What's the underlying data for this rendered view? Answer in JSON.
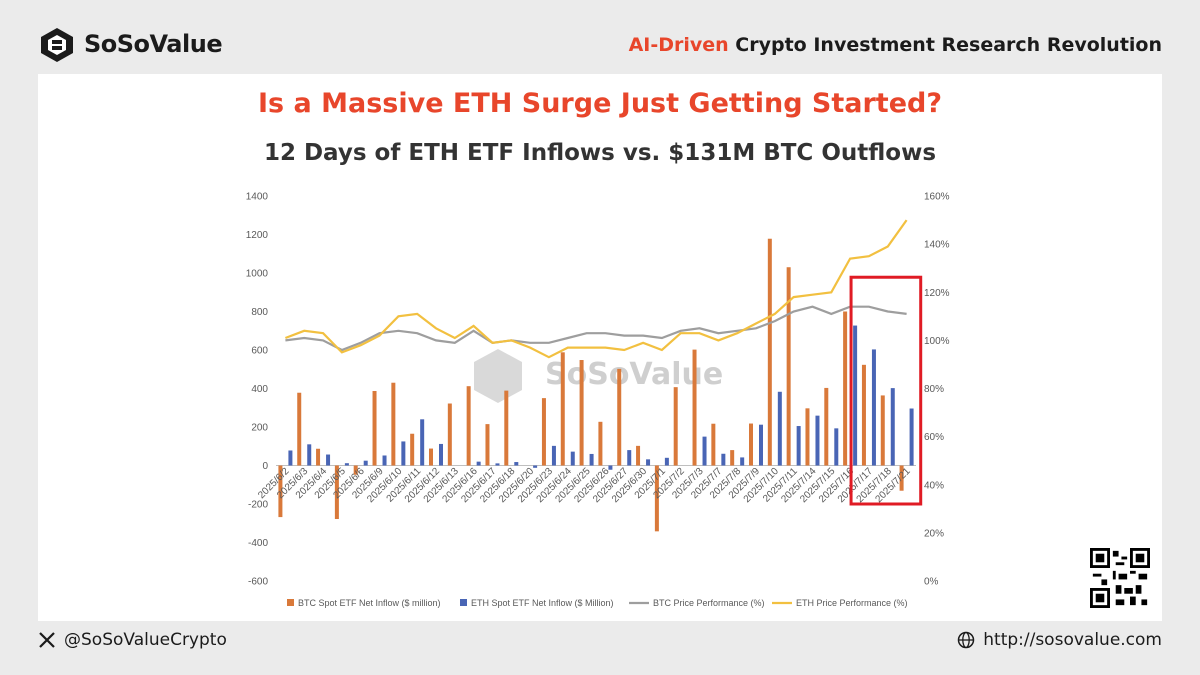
{
  "header": {
    "brand": "SoSoValue",
    "tagline_accent": "AI-Driven",
    "tagline_rest": " Crypto Investment Research Revolution"
  },
  "title": "Is a Massive ETH Surge Just Getting Started?",
  "subtitle": "12 Days of ETH ETF Inflows vs. $131M BTC Outflows",
  "watermark": "SoSoValue",
  "footer": {
    "handle": "@SoSoValueCrypto",
    "url": "http://sosovalue.com"
  },
  "colors": {
    "btc_bar": "#d9793a",
    "eth_bar": "#4965b5",
    "btc_line": "#9e9e9e",
    "eth_line": "#f2c040",
    "accent": "#e8462b",
    "highlight_box": "#e01b24"
  },
  "chart_data": {
    "type": "bar",
    "categories": [
      "2025/6/2",
      "2025/6/3",
      "2025/6/4",
      "2025/6/5",
      "2025/6/6",
      "2025/6/9",
      "2025/6/10",
      "2025/6/11",
      "2025/6/12",
      "2025/6/13",
      "2025/6/16",
      "2025/6/17",
      "2025/6/18",
      "2025/6/20",
      "2025/6/23",
      "2025/6/24",
      "2025/6/25",
      "2025/6/26",
      "2025/6/27",
      "2025/6/30",
      "2025/7/1",
      "2025/7/2",
      "2025/7/3",
      "2025/7/7",
      "2025/7/8",
      "2025/7/9",
      "2025/7/10",
      "2025/7/11",
      "2025/7/14",
      "2025/7/15",
      "2025/7/16",
      "2025/7/17",
      "2025/7/18",
      "2025/7/21"
    ],
    "series": [
      {
        "name": "BTC Spot ETF Net Inflow ($ million)",
        "axis": "left",
        "kind": "bar",
        "values": [
          -268,
          378,
          87,
          -278,
          -48,
          387,
          430,
          165,
          88,
          322,
          412,
          215,
          389,
          0,
          350,
          588,
          548,
          227,
          502,
          102,
          -342,
          407,
          602,
          217,
          80,
          218,
          1178,
          1030,
          297,
          403,
          800,
          523,
          364,
          -131
        ]
      },
      {
        "name": "ETH Spot ETF Net Inflow ($ Million)",
        "axis": "left",
        "kind": "bar",
        "values": [
          78,
          110,
          57,
          12,
          25,
          52,
          125,
          240,
          112,
          0,
          20,
          11,
          18,
          -12,
          102,
          72,
          60,
          -22,
          80,
          32,
          40,
          0,
          150,
          61,
          42,
          212,
          383,
          205,
          259,
          193,
          727,
          603,
          402,
          296
        ]
      },
      {
        "name": "BTC Price Performance (%)",
        "axis": "right",
        "kind": "line",
        "values": [
          100,
          101,
          100,
          96,
          99,
          103,
          104,
          103,
          100,
          99,
          104,
          99,
          100,
          99,
          99,
          101,
          103,
          103,
          102,
          102,
          101,
          104,
          105,
          103,
          104,
          105,
          108,
          112,
          114,
          111,
          114,
          114,
          112,
          111
        ]
      },
      {
        "name": "ETH Price Performance (%)",
        "axis": "right",
        "kind": "line",
        "values": [
          101,
          104,
          103,
          95,
          98,
          102,
          110,
          111,
          105,
          101,
          106,
          99,
          100,
          97,
          93,
          97,
          97,
          97,
          96,
          99,
          96,
          103,
          103,
          100,
          103,
          107,
          111,
          118,
          119,
          120,
          134,
          135,
          139,
          150
        ]
      }
    ],
    "y_left": {
      "min": -600,
      "max": 1400,
      "ticks": [
        "-600",
        "-400",
        "-200",
        "0",
        "200",
        "400",
        "600",
        "800",
        "1000",
        "1200",
        "1400"
      ]
    },
    "y_right": {
      "min": 0,
      "max": 160,
      "ticks": [
        "0%",
        "20%",
        "40%",
        "60%",
        "80%",
        "100%",
        "120%",
        "140%",
        "160%"
      ]
    },
    "grid": false,
    "legend_position": "bottom",
    "highlight": {
      "from_category": "2025/7/17",
      "to_category": "2025/7/21"
    }
  }
}
